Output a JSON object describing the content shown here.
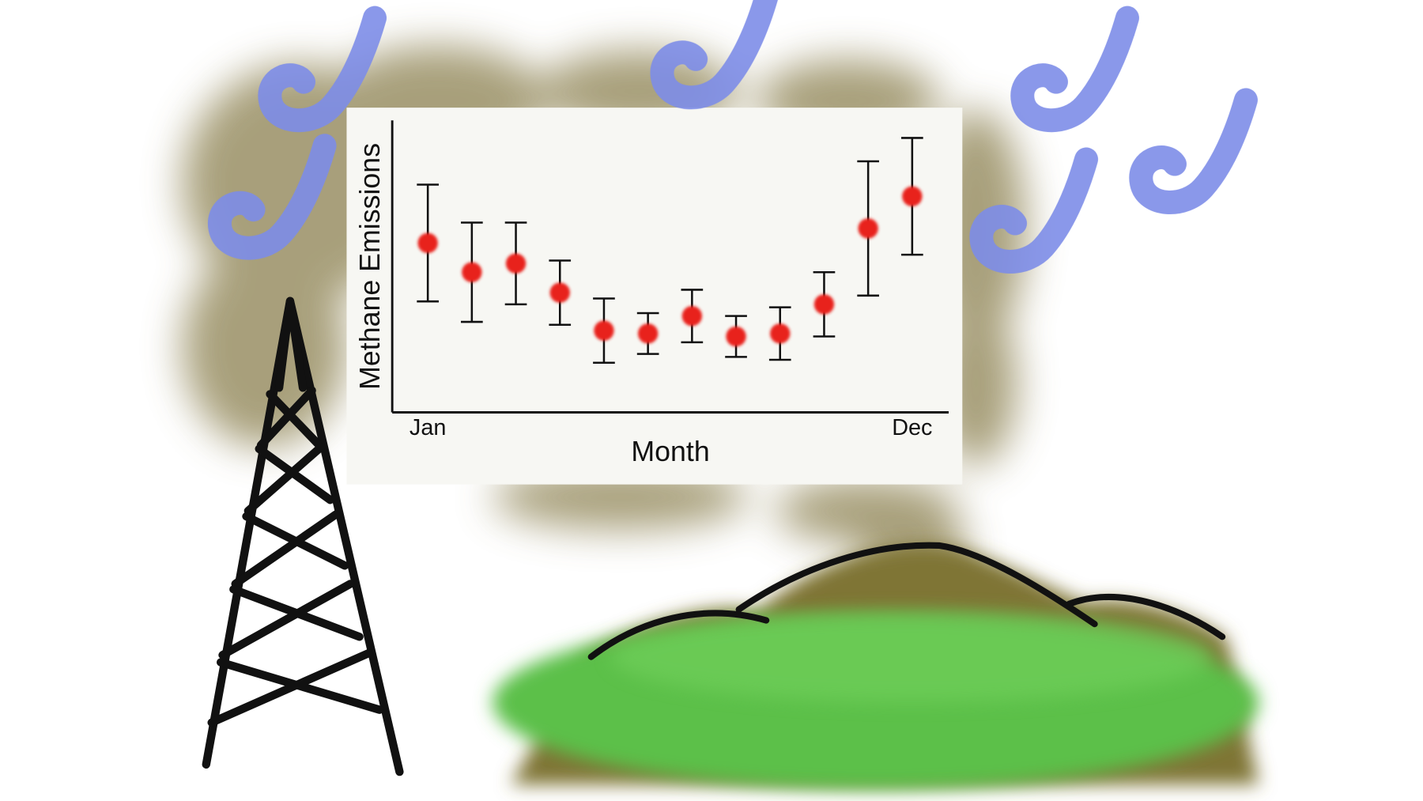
{
  "chart_data": {
    "type": "errorbar",
    "y_label": "Methane Emissions",
    "x_label": "Month",
    "categories": [
      "Jan",
      null,
      null,
      null,
      null,
      null,
      null,
      null,
      null,
      null,
      null,
      "Dec"
    ],
    "values": [
      5.8,
      4.8,
      5.1,
      4.1,
      2.8,
      2.7,
      3.3,
      2.6,
      2.7,
      3.7,
      6.3,
      7.4
    ],
    "errors": [
      2.0,
      1.7,
      1.4,
      1.1,
      1.1,
      0.7,
      0.9,
      0.7,
      0.9,
      1.1,
      2.3,
      2.0
    ],
    "color": "#e8231a",
    "ylim": [
      0,
      10
    ]
  }
}
